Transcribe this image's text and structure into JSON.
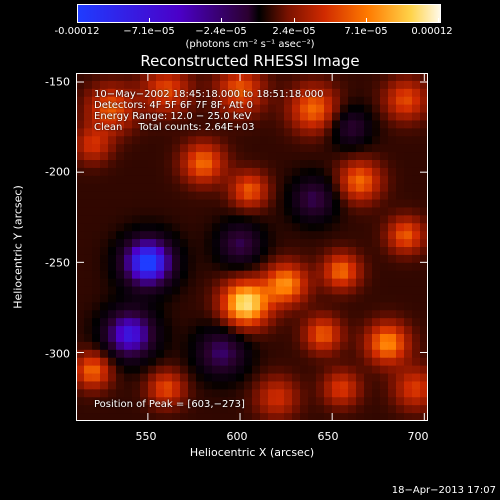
{
  "colorbar": {
    "ticks": [
      "-0.00012",
      "−7.1e−05",
      "−2.4e−05",
      "2.4e−05",
      "7.1e−05",
      "0.00012"
    ],
    "units": "(photons cm⁻² s⁻¹ asec⁻²)"
  },
  "title": "Reconstructed RHESSI Image",
  "annotations": {
    "time_range": "10−May−2002 18:45:18.000 to 18:51:18.000",
    "detectors": "Detectors: 4F 5F 6F 7F 8F, Att 0",
    "energy": "Energy Range: 12.0 − 25.0 keV",
    "clean": "Clean     Total counts: 2.64E+03",
    "peak": "Position of Peak = [603,−273]"
  },
  "footer_timestamp": "18−Apr−2013 17:07",
  "chart_data": {
    "type": "heatmap",
    "title": "Reconstructed RHESSI Image",
    "xlabel": "Heliocentric X (arcsec)",
    "ylabel": "Heliocentric Y (arcsec)",
    "xlim": [
      511,
      702
    ],
    "ylim": [
      -338,
      -145
    ],
    "xticks": [
      550,
      600,
      650,
      700
    ],
    "yticks": [
      -150,
      -200,
      -250,
      -300
    ],
    "colorbar_range": [
      -0.00012,
      0.00012
    ],
    "colormap": [
      "#1f3cff",
      "#4b00c8",
      "#2b0030",
      "#000000",
      "#7a1200",
      "#d02a00",
      "#ff7a00",
      "#ffd34a",
      "#fff9e8"
    ],
    "peak": {
      "x": 603,
      "y": -273
    },
    "sources": [
      {
        "x": 603,
        "y": -273,
        "amp": 1.0,
        "sigma": 9
      },
      {
        "x": 625,
        "y": -262,
        "amp": 0.7,
        "sigma": 8
      },
      {
        "x": 645,
        "y": -290,
        "amp": 0.55,
        "sigma": 7
      },
      {
        "x": 680,
        "y": -295,
        "amp": 0.7,
        "sigma": 8
      },
      {
        "x": 655,
        "y": -255,
        "amp": 0.6,
        "sigma": 7
      },
      {
        "x": 665,
        "y": -205,
        "amp": 0.6,
        "sigma": 8
      },
      {
        "x": 690,
        "y": -235,
        "amp": 0.55,
        "sigma": 7
      },
      {
        "x": 640,
        "y": -165,
        "amp": 0.6,
        "sigma": 9
      },
      {
        "x": 600,
        "y": -155,
        "amp": 0.55,
        "sigma": 9
      },
      {
        "x": 580,
        "y": -195,
        "amp": 0.6,
        "sigma": 8
      },
      {
        "x": 560,
        "y": -155,
        "amp": 0.5,
        "sigma": 9
      },
      {
        "x": 530,
        "y": -165,
        "amp": 0.55,
        "sigma": 9
      },
      {
        "x": 520,
        "y": -185,
        "amp": 0.4,
        "sigma": 7
      },
      {
        "x": 605,
        "y": -210,
        "amp": 0.55,
        "sigma": 7
      },
      {
        "x": 520,
        "y": -310,
        "amp": 0.6,
        "sigma": 7
      },
      {
        "x": 560,
        "y": -320,
        "amp": 0.5,
        "sigma": 7
      },
      {
        "x": 620,
        "y": -325,
        "amp": 0.4,
        "sigma": 8
      },
      {
        "x": 655,
        "y": -320,
        "amp": 0.45,
        "sigma": 7
      },
      {
        "x": 695,
        "y": -320,
        "amp": 0.45,
        "sigma": 8
      },
      {
        "x": 690,
        "y": -160,
        "amp": 0.5,
        "sigma": 8
      },
      {
        "x": 550,
        "y": -250,
        "amp": -0.9,
        "sigma": 10
      },
      {
        "x": 540,
        "y": -290,
        "amp": -0.7,
        "sigma": 10
      },
      {
        "x": 600,
        "y": -240,
        "amp": -0.4,
        "sigma": 9
      },
      {
        "x": 640,
        "y": -215,
        "amp": -0.4,
        "sigma": 9
      },
      {
        "x": 660,
        "y": -175,
        "amp": -0.35,
        "sigma": 8
      },
      {
        "x": 590,
        "y": -300,
        "amp": -0.45,
        "sigma": 10
      }
    ]
  }
}
